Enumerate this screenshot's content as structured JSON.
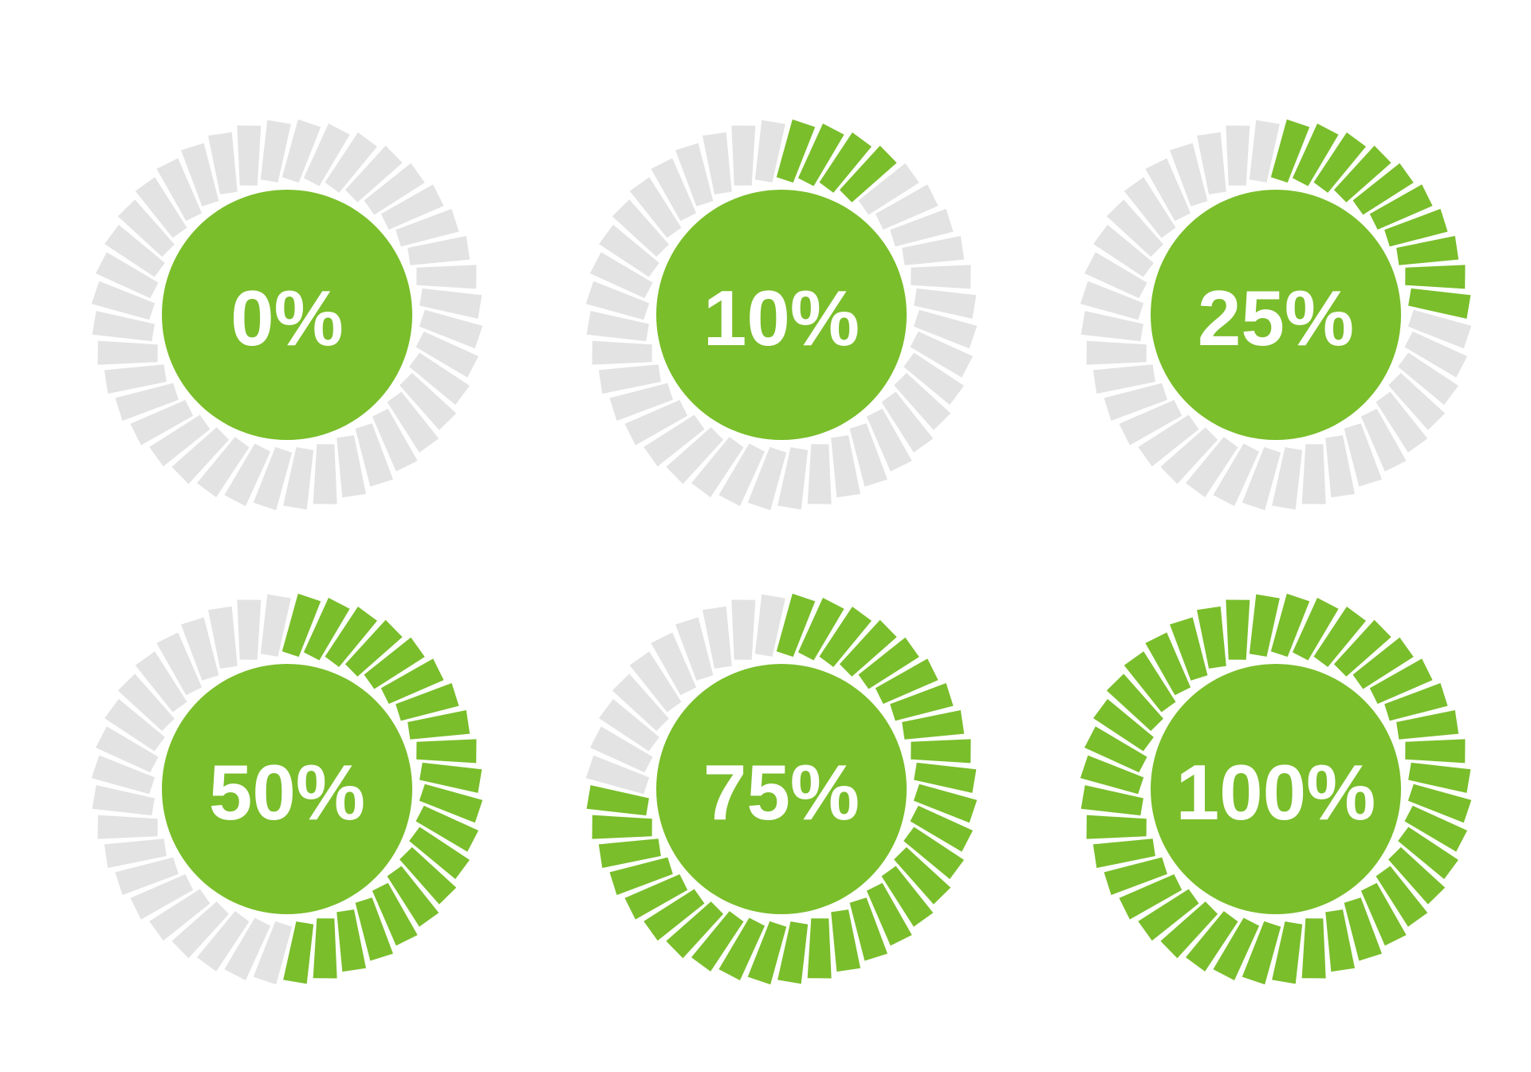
{
  "page": {
    "background": "#ffffff",
    "description": "Set of six circular segmented progress indicators"
  },
  "chart_data": {
    "type": "pie",
    "subtype": "circular-progress-ring",
    "title": "",
    "categories": [
      "0%",
      "10%",
      "25%",
      "50%",
      "75%",
      "100%"
    ],
    "values": [
      0,
      10,
      25,
      50,
      75,
      100
    ],
    "items": [
      {
        "label": "0%",
        "value": 0
      },
      {
        "label": "10%",
        "value": 10
      },
      {
        "label": "25%",
        "value": 25
      },
      {
        "label": "50%",
        "value": 50
      },
      {
        "label": "75%",
        "value": 75
      },
      {
        "label": "100%",
        "value": 100
      }
    ],
    "layout": {
      "grid": "3x2",
      "segments_total": 40,
      "start_angle_deg": 0,
      "direction": "clockwise",
      "tick_tilt_deg": 14,
      "legend": "none",
      "grid_lines": "off"
    },
    "colors": {
      "progress_green": "#7ABE2B",
      "track_gray": "#E3E3E3",
      "label_white": "#FFFFFF"
    }
  }
}
